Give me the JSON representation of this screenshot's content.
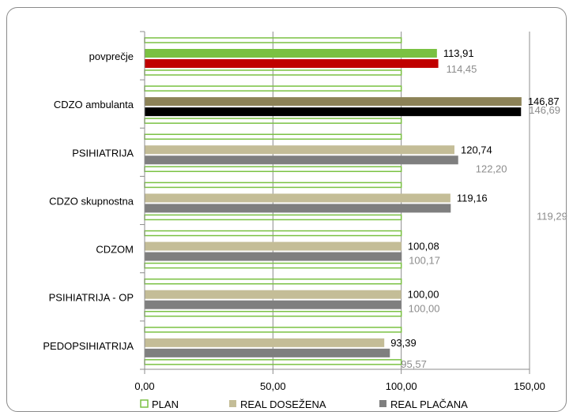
{
  "chart_data": {
    "type": "bar",
    "orientation": "horizontal",
    "categories": [
      "povprečje",
      "CDZO ambulanta",
      "PSIHIATRIJA",
      "CDZO skupnostna",
      "CDZOM",
      "PSIHIATRIJA - OP",
      "PEDOPSIHIATRIJA"
    ],
    "series": [
      {
        "name": "PLAN",
        "values": [
          100,
          100,
          100,
          100,
          100,
          100,
          100
        ],
        "color": "#7ac142",
        "style": "outline"
      },
      {
        "name": "REAL DOSEŽENA",
        "values": [
          113.91,
          146.87,
          120.74,
          119.16,
          100.08,
          100.0,
          93.39
        ],
        "color": "#c4bd97",
        "colors": [
          "#7ac142",
          "#8c8257",
          null,
          null,
          null,
          null,
          null
        ]
      },
      {
        "name": "REAL PLAČANA",
        "values": [
          114.45,
          146.69,
          122.2,
          119.29,
          100.17,
          100.0,
          95.57
        ],
        "color": "#7f7f7f",
        "colors": [
          "#c00000",
          "#000000",
          null,
          null,
          null,
          null,
          null
        ]
      }
    ],
    "data_labels": {
      "real_dosezena": [
        "113,91",
        "146,87",
        "120,74",
        "119,16",
        "100,08",
        "100,00",
        "93,39"
      ],
      "real_placana": [
        "114,45",
        "146,69",
        "122,20",
        "119,29",
        "100,17",
        "100,00",
        "95,57"
      ]
    },
    "xticks": [
      "0,00",
      "50,00",
      "100,00",
      "150,00"
    ],
    "xlim": [
      0,
      150
    ],
    "grid": true,
    "legend": "bottom",
    "title": "",
    "xlabel": "",
    "ylabel": ""
  }
}
